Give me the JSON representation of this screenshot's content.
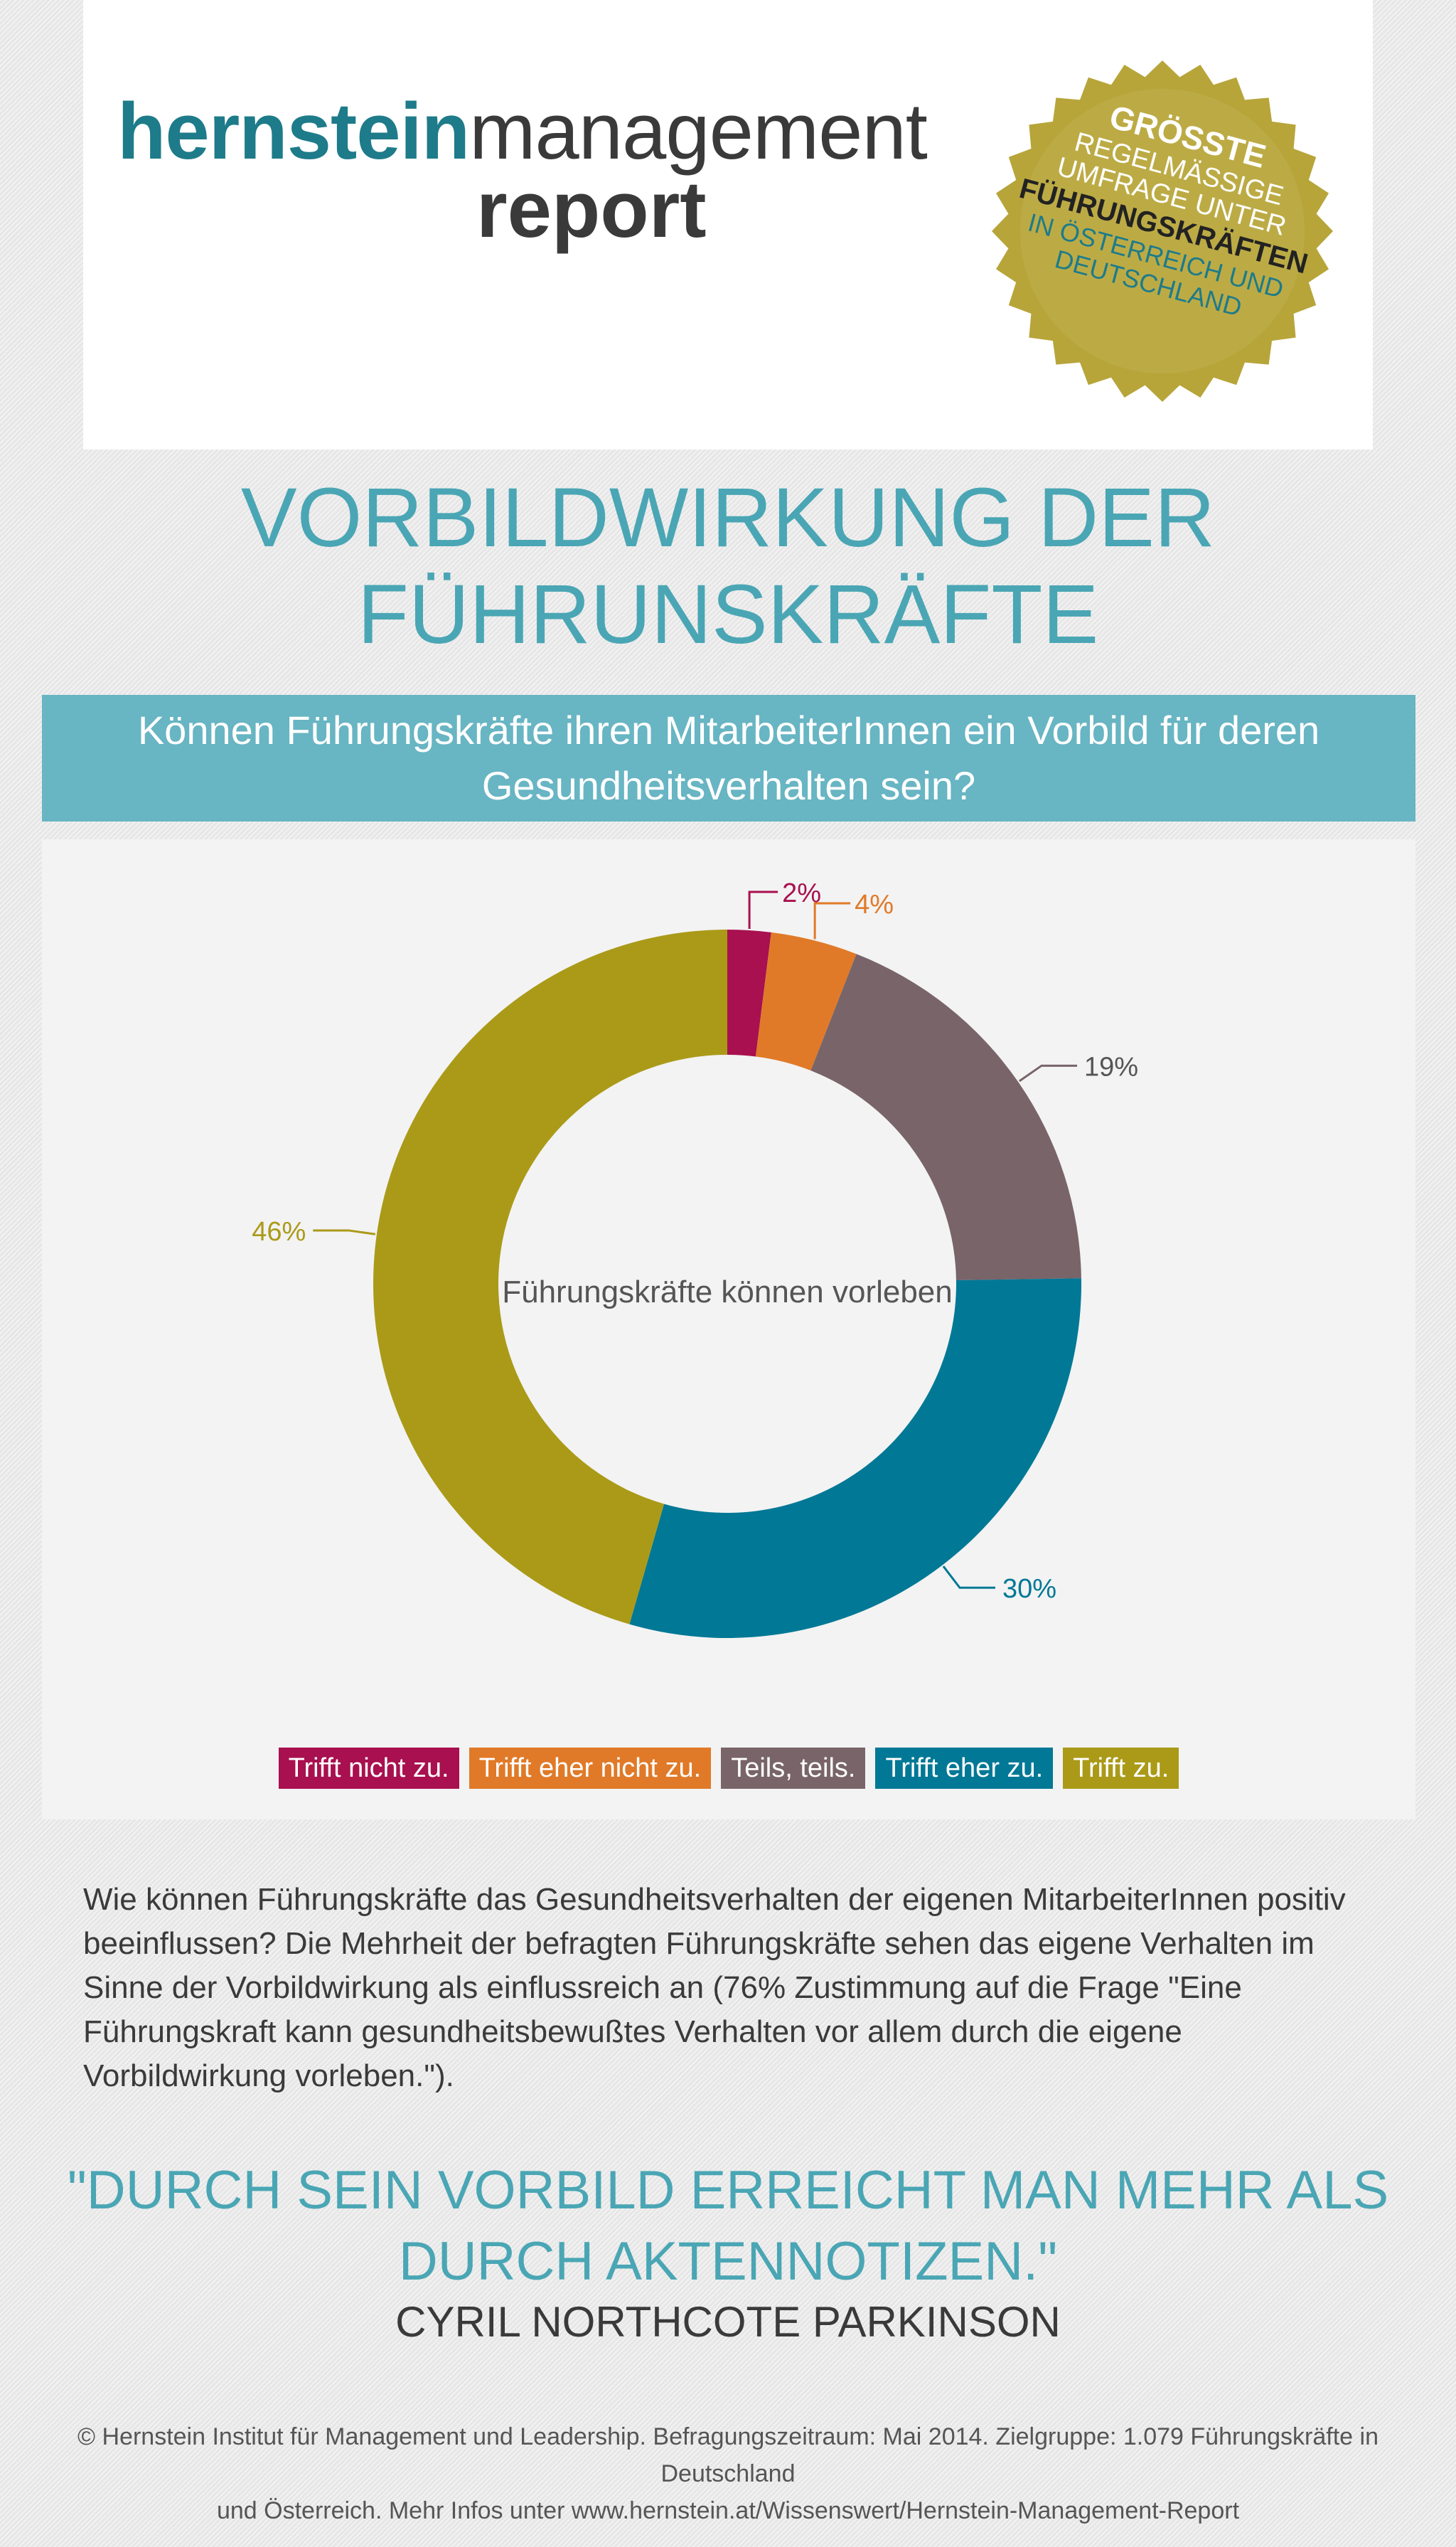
{
  "header": {
    "logo_bold": "hernstein",
    "logo_light": "management",
    "logo_sub": "report",
    "badge_lines": [
      "GRÖSSTE",
      "REGELMÄSSIGE",
      "UMFRAGE UNTER",
      "FÜHRUNGSKRÄFTEN",
      "IN ÖSTERREICH UND",
      "DEUTSCHLAND"
    ]
  },
  "title": {
    "line1": "VORBILDWIRKUNG DER",
    "line2": "FÜHRUNSKRÄFTE"
  },
  "question": {
    "line1": "Können Führungskräfte ihren MitarbeiterInnen ein Vorbild für deren",
    "line2": "Gesundheitsverhalten sein?"
  },
  "chart_data": {
    "type": "pie",
    "variant": "donut",
    "center_label": "Führungskräfte können vorleben",
    "categories": [
      "Trifft nicht zu.",
      "Trifft eher nicht zu.",
      "Teils, teils.",
      "Trifft eher zu.",
      "Trifft zu."
    ],
    "values": [
      2,
      4,
      19,
      30,
      46
    ],
    "labels": [
      "2%",
      "4%",
      "19%",
      "30%",
      "46%"
    ],
    "colors": [
      "#a8104f",
      "#e07a28",
      "#786469",
      "#007896",
      "#aa9a18"
    ],
    "legend_position": "bottom"
  },
  "body_text": "Wie können Führungskräfte das Gesundheitsverhalten der eigenen MitarbeiterInnen positiv beeinflussen? Die Mehrheit der befragten Führungskräfte sehen das eigene Verhalten im Sinne der Vorbildwirkung als einflussreich an (76% Zustimmung auf die Frage \"Eine Führungskraft kann gesundheitsbewußtes Verhalten vor allem durch die eigene Vorbildwirkung vorleben.\").",
  "quote": {
    "line1": "\"DURCH SEIN VORBILD ERREICHT MAN MEHR ALS",
    "line2": "DURCH AKTENNOTIZEN.\"",
    "author": "CYRIL NORTHCOTE PARKINSON"
  },
  "footer": {
    "line1": "© Hernstein Institut für Management und Leadership. Befragungszeitraum: Mai 2014. Zielgruppe: 1.079 Führungskräfte in Deutschland",
    "line2": "und Österreich. Mehr Infos unter www.hernstein.at/Wissenswert/Hernstein-Management-Report"
  }
}
